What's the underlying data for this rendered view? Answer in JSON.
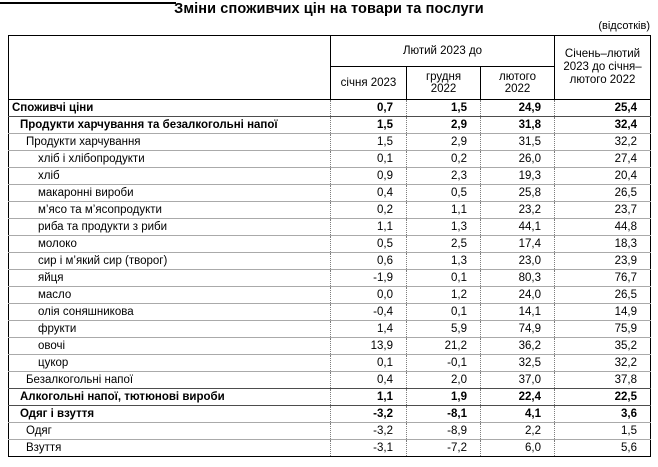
{
  "title": "Зміни споживчих цін на товари та послуги",
  "unit_note": "(відсотків)",
  "table": {
    "group_header": "Лютий 2023 до",
    "sub_headers": [
      "січня 2023",
      "грудня 2022",
      "лютого 2022"
    ],
    "period_header": "Січень–лютий 2023 до січня–лютого 2022",
    "rows": [
      {
        "label": "Споживчі ціни",
        "indent": 0,
        "bold": true,
        "values": [
          "0,7",
          "1,5",
          "24,9",
          "25,4"
        ]
      },
      {
        "label": "Продукти харчування та безалкогольні напої",
        "indent": 1,
        "bold": true,
        "values": [
          "1,5",
          "2,9",
          "31,8",
          "32,4"
        ]
      },
      {
        "label": "Продукти харчування",
        "indent": 2,
        "bold": false,
        "values": [
          "1,5",
          "2,9",
          "31,5",
          "32,2"
        ]
      },
      {
        "label": "хліб і хлібопродукти",
        "indent": 3,
        "bold": false,
        "values": [
          "0,1",
          "0,2",
          "26,0",
          "27,4"
        ]
      },
      {
        "label": "хліб",
        "indent": 3,
        "bold": false,
        "values": [
          "0,9",
          "2,3",
          "19,3",
          "20,4"
        ]
      },
      {
        "label": "макаронні вироби",
        "indent": 3,
        "bold": false,
        "values": [
          "0,4",
          "0,5",
          "25,8",
          "26,5"
        ]
      },
      {
        "label": "м’ясо та м’ясопродукти",
        "indent": 3,
        "bold": false,
        "values": [
          "0,2",
          "1,1",
          "23,2",
          "23,7"
        ]
      },
      {
        "label": "риба та продукти з риби",
        "indent": 3,
        "bold": false,
        "values": [
          "1,1",
          "1,3",
          "44,1",
          "44,8"
        ]
      },
      {
        "label": "молоко",
        "indent": 3,
        "bold": false,
        "values": [
          "0,5",
          "2,5",
          "17,4",
          "18,3"
        ]
      },
      {
        "label": "сир і м’який сир (творог)",
        "indent": 3,
        "bold": false,
        "values": [
          "0,6",
          "1,3",
          "23,0",
          "23,9"
        ]
      },
      {
        "label": "яйця",
        "indent": 3,
        "bold": false,
        "values": [
          "-1,9",
          "0,1",
          "80,3",
          "76,7"
        ]
      },
      {
        "label": "масло",
        "indent": 3,
        "bold": false,
        "values": [
          "0,0",
          "1,2",
          "24,0",
          "26,5"
        ]
      },
      {
        "label": "олія соняшникова",
        "indent": 3,
        "bold": false,
        "values": [
          "-0,4",
          "0,1",
          "14,1",
          "14,9"
        ]
      },
      {
        "label": "фрукти",
        "indent": 3,
        "bold": false,
        "values": [
          "1,4",
          "5,9",
          "74,9",
          "75,9"
        ]
      },
      {
        "label": "овочі",
        "indent": 3,
        "bold": false,
        "values": [
          "13,9",
          "21,2",
          "36,2",
          "35,2"
        ]
      },
      {
        "label": "цукор",
        "indent": 3,
        "bold": false,
        "values": [
          "0,1",
          "-0,1",
          "32,5",
          "32,2"
        ]
      },
      {
        "label": "Безалкогольні напої",
        "indent": 2,
        "bold": false,
        "values": [
          "0,4",
          "2,0",
          "37,0",
          "37,8"
        ]
      },
      {
        "label": "Алкогольні напої, тютюнові вироби",
        "indent": 1,
        "bold": true,
        "values": [
          "1,1",
          "1,9",
          "22,4",
          "22,5"
        ]
      },
      {
        "label": "Одяг і взуття",
        "indent": 1,
        "bold": true,
        "values": [
          "-3,2",
          "-8,1",
          "4,1",
          "3,6"
        ]
      },
      {
        "label": "Одяг",
        "indent": 2,
        "bold": false,
        "values": [
          "-3,2",
          "-8,9",
          "2,2",
          "1,5"
        ]
      },
      {
        "label": "Взуття",
        "indent": 2,
        "bold": false,
        "values": [
          "-3,1",
          "-7,2",
          "6,0",
          "5,6"
        ]
      }
    ]
  }
}
